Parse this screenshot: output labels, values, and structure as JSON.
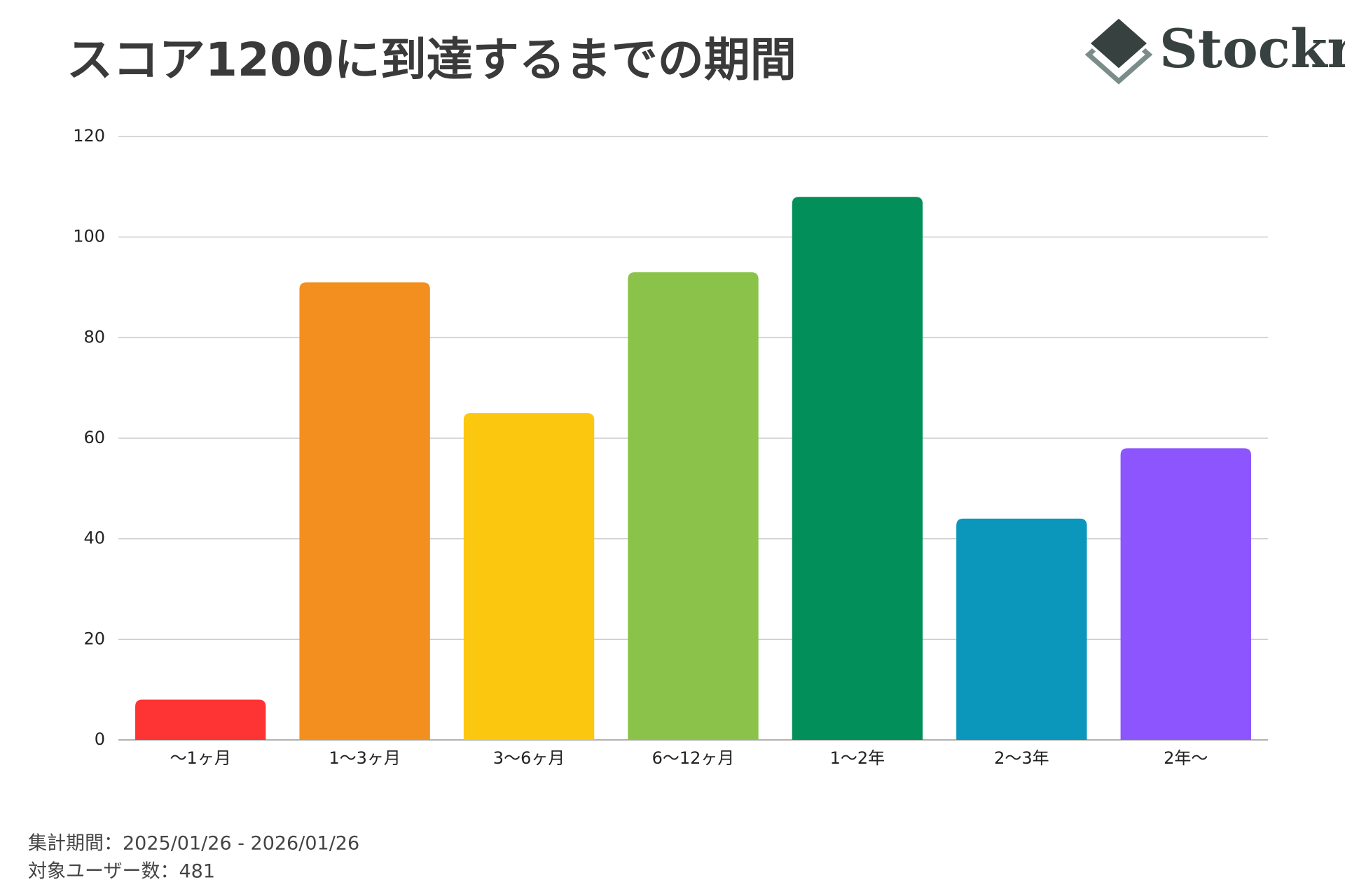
{
  "chart_data": {
    "type": "bar",
    "title": "スコア1200に到達するまでの期間",
    "logo": "Stockr",
    "categories": [
      "〜1ヶ月",
      "1〜3ヶ月",
      "3〜6ヶ月",
      "6〜12ヶ月",
      "1〜2年",
      "2〜3年",
      "2年〜"
    ],
    "values": [
      8,
      91,
      65,
      93,
      108,
      44,
      58
    ],
    "colors": [
      "#fe3334",
      "#f28f1e",
      "#fcc70f",
      "#8bc34a",
      "#038f5a",
      "#0b96bb",
      "#8c55fd"
    ],
    "ylim": [
      0,
      120
    ],
    "yticks": [
      0,
      20,
      40,
      60,
      80,
      100,
      120
    ],
    "grid": true,
    "footnotes": [
      "集計期間：2025/01/26 - 2026/01/26",
      "対象ユーザー数：481"
    ]
  }
}
